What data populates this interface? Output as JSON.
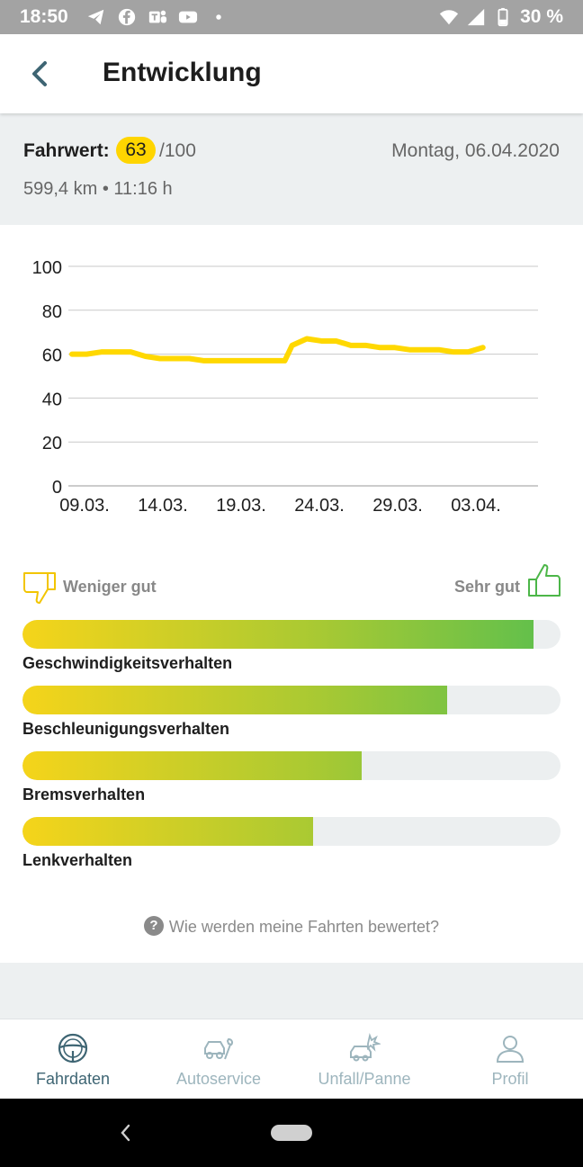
{
  "status_bar": {
    "time": "18:50",
    "battery": "30 %",
    "icons_left": [
      "telegram-icon",
      "facebook-icon",
      "teams-icon",
      "youtube-icon",
      "dot-icon"
    ],
    "icons_right": [
      "wifi-icon",
      "signal-icon",
      "battery-icon"
    ]
  },
  "header": {
    "title": "Entwicklung",
    "back_icon": "arrow-left-icon"
  },
  "summary": {
    "label": "Fahrwert:",
    "score": "63",
    "score_max": "/100",
    "date": "Montag, 06.04.2020",
    "distance_time": "599,4 km • 11:16 h"
  },
  "chart_data": {
    "type": "line",
    "title": "",
    "xlabel": "",
    "ylabel": "",
    "ylim": [
      0,
      100
    ],
    "y_ticks": [
      "0",
      "20",
      "40",
      "60",
      "80",
      "100"
    ],
    "x_ticks": [
      "09.03.",
      "14.03.",
      "19.03.",
      "24.03.",
      "29.03.",
      "03.04."
    ],
    "grid": true,
    "color": "#ffd800",
    "series": [
      {
        "x": [
          0,
          1,
          2,
          3,
          4,
          5,
          6,
          7,
          8,
          9,
          10,
          11,
          12,
          13,
          14,
          14.5,
          15,
          16,
          17,
          18,
          19,
          20,
          21,
          22,
          23,
          24,
          25,
          26,
          27,
          28
        ],
        "values": [
          60,
          60,
          61,
          61,
          61,
          59,
          58,
          58,
          58,
          57,
          57,
          57,
          57,
          57,
          57,
          57,
          64,
          67,
          66,
          66,
          64,
          64,
          63,
          63,
          62,
          62,
          62,
          61,
          61,
          63
        ]
      }
    ]
  },
  "ratings": {
    "low_label": "Weniger gut",
    "high_label": "Sehr gut",
    "items": [
      {
        "label": "Geschwindigkeitsverhalten",
        "fraction": 0.95
      },
      {
        "label": "Beschleunigungsverhalten",
        "fraction": 0.79
      },
      {
        "label": "Bremsverhalten",
        "fraction": 0.63
      },
      {
        "label": "Lenkverhalten",
        "fraction": 0.54
      }
    ]
  },
  "help": {
    "text": "Wie werden meine Fahrten bewertet?",
    "icon": "help-circle-icon"
  },
  "bottom_nav": {
    "items": [
      {
        "label": "Fahrdaten",
        "icon": "steering-wheel-icon",
        "active": true
      },
      {
        "label": "Autoservice",
        "icon": "car-wrench-icon",
        "active": false
      },
      {
        "label": "Unfall/Panne",
        "icon": "car-crash-icon",
        "active": false
      },
      {
        "label": "Profil",
        "icon": "person-icon",
        "active": false
      }
    ]
  },
  "colors": {
    "accent": "#ffd500",
    "nav_active": "#3e6573",
    "nav_inactive": "#9db5bd",
    "bar_start": "#f5d41a",
    "bar_end": "#5bbf4e"
  }
}
